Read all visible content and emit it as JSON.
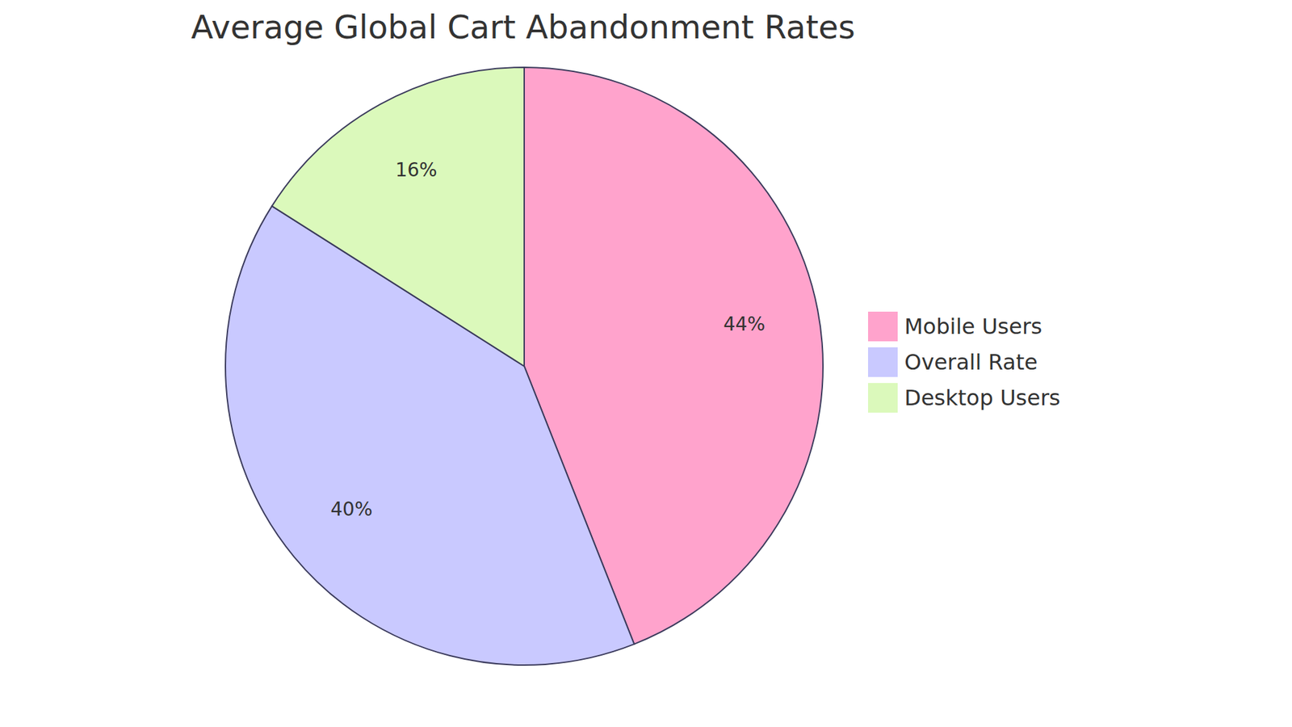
{
  "chart_data": {
    "type": "pie",
    "title": "Average Global Cart Abandonment Rates",
    "categories": [
      "Mobile Users",
      "Overall Rate",
      "Desktop Users"
    ],
    "values": [
      44,
      40,
      16
    ],
    "value_labels": [
      "44%",
      "40%",
      "16%"
    ],
    "colors": [
      "#ffa3cc",
      "#c9c9ff",
      "#dbf9bb"
    ],
    "data_labels": true,
    "legend": "right"
  }
}
